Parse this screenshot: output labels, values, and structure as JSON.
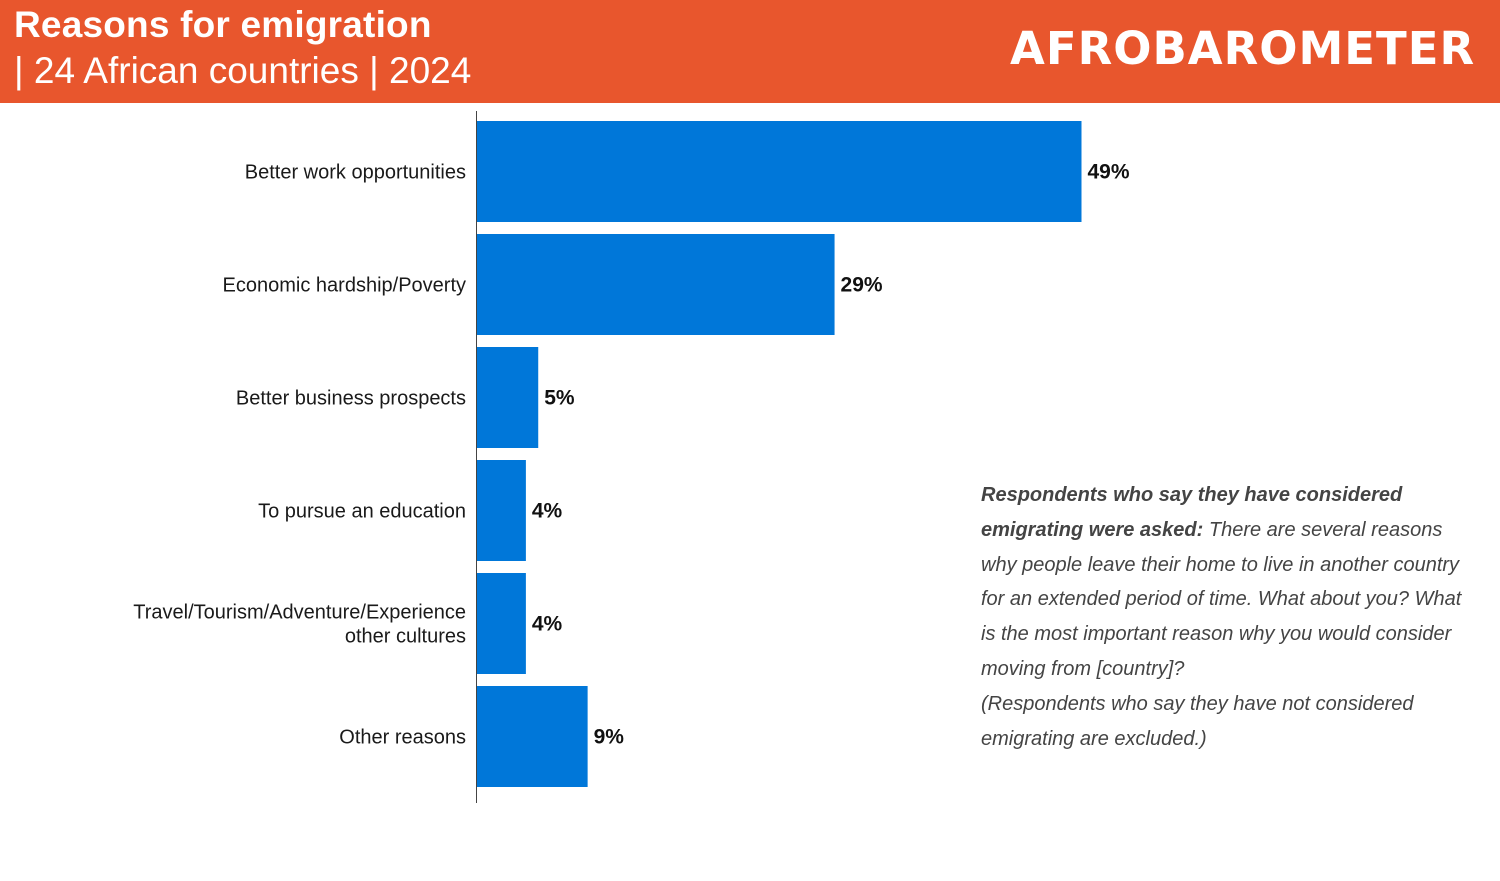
{
  "header": {
    "title": "Reasons for emigration",
    "subtitle": "| 24 African countries | 2024",
    "logo_text": "AFROBAROMETER",
    "background_color": "#e8562d"
  },
  "note": {
    "lead": "Respondents who say they have considered emigrating were asked:",
    "question": "There are several reasons why people leave their home to live in another country for an extended period of time. What about you? What is the most important reason why you would consider moving from [country]?",
    "exclusion": "(Respondents who say they have not considered emigrating are excluded.)"
  },
  "chart_data": {
    "type": "bar",
    "orientation": "horizontal",
    "categories": [
      "Better work opportunities",
      "Economic hardship/Poverty",
      "Better business prospects",
      "To pursue an education",
      "Travel/Tourism/Adventure/Experience other cultures",
      "Other reasons"
    ],
    "category_lines": [
      [
        "Better work opportunities"
      ],
      [
        "Economic hardship/Poverty"
      ],
      [
        "Better business prospects"
      ],
      [
        "To pursue an education"
      ],
      [
        "Travel/Tourism/Adventure/Experience",
        "other cultures"
      ],
      [
        "Other reasons"
      ]
    ],
    "values": [
      49,
      29,
      5,
      4,
      4,
      9
    ],
    "value_labels": [
      "49%",
      "29%",
      "5%",
      "4%",
      "4%",
      "9%"
    ],
    "unit": "%",
    "bar_color": "#0077d9",
    "grid": false,
    "legend": "none"
  }
}
